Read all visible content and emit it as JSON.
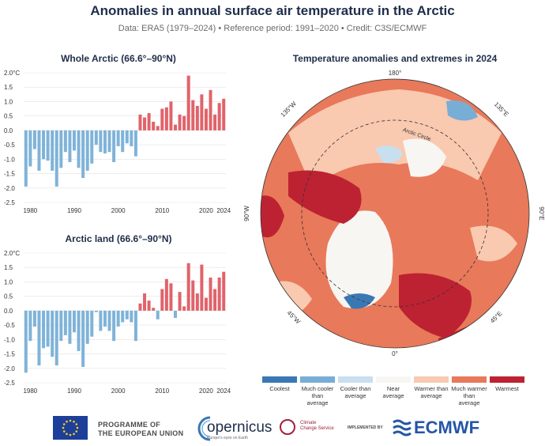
{
  "header": {
    "title": "Anomalies in annual surface air temperature in the Arctic",
    "subtitle": "Data: ERA5 (1979–2024) • Reference period: 1991–2020 • Credit: C3S/ECMWF"
  },
  "colors": {
    "negative_bar": "#7fb3d9",
    "positive_bar": "#e0636a",
    "coolest": "#3a78b4",
    "much_cooler": "#78aed6",
    "cooler": "#c8dff0",
    "near": "#f7f6f3",
    "warmer": "#f9c9b0",
    "much_warmer": "#e8795a",
    "warmest": "#bd2232"
  },
  "chart_data": [
    {
      "type": "bar",
      "title": "Whole Arctic (66.6°–90°N)",
      "x": [
        1979,
        1980,
        1981,
        1982,
        1983,
        1984,
        1985,
        1986,
        1987,
        1988,
        1989,
        1990,
        1991,
        1992,
        1993,
        1994,
        1995,
        1996,
        1997,
        1998,
        1999,
        2000,
        2001,
        2002,
        2003,
        2004,
        2005,
        2006,
        2007,
        2008,
        2009,
        2010,
        2011,
        2012,
        2013,
        2014,
        2015,
        2016,
        2017,
        2018,
        2019,
        2020,
        2021,
        2022,
        2023,
        2024
      ],
      "values": [
        -1.95,
        -1.25,
        -0.65,
        -1.4,
        -1.0,
        -1.05,
        -1.4,
        -1.95,
        -1.3,
        -0.75,
        -1.1,
        -0.7,
        -1.3,
        -1.65,
        -1.4,
        -1.15,
        -0.5,
        -0.75,
        -0.8,
        -0.75,
        -1.1,
        -0.55,
        -0.75,
        -0.45,
        -0.55,
        -0.9,
        0.55,
        0.45,
        0.6,
        0.3,
        0.15,
        0.75,
        0.8,
        1.0,
        0.2,
        0.55,
        0.5,
        1.9,
        1.05,
        0.85,
        1.25,
        0.75,
        1.4,
        0.55,
        0.95,
        1.1
      ],
      "x_ticks": [
        "1980",
        "1990",
        "2000",
        "2010",
        "2020",
        "2024"
      ],
      "y_ticks": [
        "2.0°C",
        "1.5",
        "1.0",
        "0.5",
        "0.0",
        "-0.5",
        "-1.0",
        "-1.5",
        "-2.0",
        "-2.5"
      ],
      "ylim": [
        -2.5,
        2.0
      ],
      "grid": true
    },
    {
      "type": "bar",
      "title": "Arctic land (66.6°–90°N)",
      "x": [
        1979,
        1980,
        1981,
        1982,
        1983,
        1984,
        1985,
        1986,
        1987,
        1988,
        1989,
        1990,
        1991,
        1992,
        1993,
        1994,
        1995,
        1996,
        1997,
        1998,
        1999,
        2000,
        2001,
        2002,
        2003,
        2004,
        2005,
        2006,
        2007,
        2008,
        2009,
        2010,
        2011,
        2012,
        2013,
        2014,
        2015,
        2016,
        2017,
        2018,
        2019,
        2020,
        2021,
        2022,
        2023,
        2024
      ],
      "values": [
        -2.15,
        -1.05,
        -0.55,
        -1.9,
        -1.3,
        -1.25,
        -1.6,
        -1.9,
        -1.05,
        -0.85,
        -1.15,
        -0.75,
        -1.4,
        -1.95,
        -1.15,
        -0.9,
        -0.05,
        -0.7,
        -0.55,
        -0.7,
        -1.05,
        -0.55,
        -0.4,
        -0.3,
        -0.4,
        -1.05,
        0.25,
        0.6,
        0.35,
        0.1,
        -0.3,
        0.75,
        1.1,
        0.95,
        -0.25,
        0.65,
        0.15,
        1.65,
        1.05,
        0.6,
        1.6,
        0.45,
        1.15,
        0.75,
        1.15,
        1.35
      ],
      "x_ticks": [
        "1980",
        "1990",
        "2000",
        "2010",
        "2020",
        "2024"
      ],
      "y_ticks": [
        "2.0°C",
        "1.5",
        "1.0",
        "0.5",
        "0.0",
        "-0.5",
        "-1.0",
        "-1.5",
        "-2.0",
        "-2.5"
      ],
      "ylim": [
        -2.5,
        2.0
      ],
      "grid": true
    }
  ],
  "map": {
    "title": "Temperature anomalies and extremes in 2024",
    "labels": {
      "top": "180°",
      "bottom": "0°",
      "left": "90°W",
      "right": "90°E",
      "nw": "135°W",
      "ne": "135°E",
      "sw": "45°W",
      "se": "45°E",
      "circle": "Arctic Circle"
    }
  },
  "legend": [
    {
      "label": "Coolest",
      "color": "#3a78b4"
    },
    {
      "label": "Much cooler than average",
      "color": "#78aed6"
    },
    {
      "label": "Cooler than average",
      "color": "#c8dff0"
    },
    {
      "label": "Near average",
      "color": "#f7f6f3"
    },
    {
      "label": "Warmer than average",
      "color": "#f9c9b0"
    },
    {
      "label": "Much warmer than average",
      "color": "#e8795a"
    },
    {
      "label": "Warmest",
      "color": "#bd2232"
    }
  ],
  "footer": {
    "eu_line1": "PROGRAMME OF",
    "eu_line2": "THE EUROPEAN UNION",
    "copernicus": "opernicus",
    "copernicus_tag": "Europe's eyes on Earth",
    "c3s_line1": "Climate",
    "c3s_line2": "Change Service",
    "implemented_by": "IMPLEMENTED BY",
    "ecmwf": "ECMWF"
  }
}
